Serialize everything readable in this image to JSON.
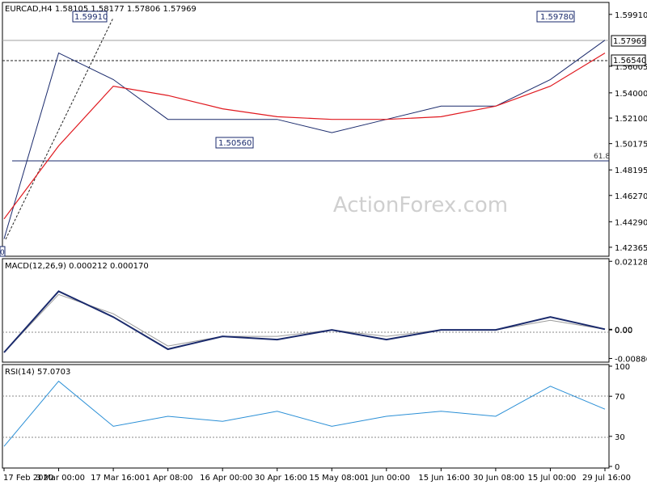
{
  "watermark": "ActionForex.com",
  "colors": {
    "price": "#1a2a6c",
    "ma": "#e0191f",
    "macd": "#1a2a6c",
    "macd_signal": "#9a9a9a",
    "rsi": "#2a8fd6",
    "frame": "#000000",
    "fib": "#1a2a6c",
    "grid_dash": "#888888"
  },
  "chart_data": [
    {
      "type": "line",
      "title": "EURCAD,H4  1.58105 1.58177 1.57806 1.57969",
      "series_name": "EURCAD H4",
      "ylim": [
        1.4175,
        1.6069
      ],
      "y_ticks": [
        "1.59910",
        "1.57969",
        "1.56540",
        "1.56005",
        "1.54000",
        "1.52100",
        "1.50175",
        "1.48195",
        "1.46270",
        "1.44290",
        "1.42365"
      ],
      "y_tick_values": [
        1.5991,
        1.57969,
        1.5654,
        1.56005,
        1.54,
        1.521,
        1.50175,
        1.48195,
        1.4627,
        1.4429,
        1.42365
      ],
      "x_ticks": [
        "17 Feb 2020",
        "3 Mar 00:00",
        "17 Mar 16:00",
        "1 Apr 08:00",
        "16 Apr 00:00",
        "30 Apr 16:00",
        "15 May 08:00",
        "1 Jun 00:00",
        "15 Jun 16:00",
        "30 Jun 08:00",
        "15 Jul 00:00",
        "29 Jul 16:00"
      ],
      "x": [
        "17 Feb 2020",
        "3 Mar 00:00",
        "17 Mar 16:00",
        "1 Apr 08:00",
        "16 Apr 00:00",
        "30 Apr 16:00",
        "15 May 08:00",
        "1 Jun 00:00",
        "15 Jun 16:00",
        "30 Jun 08:00",
        "15 Jul 00:00",
        "29 Jul 16:00"
      ],
      "price": [
        1.43,
        1.57,
        1.55,
        1.52,
        1.52,
        1.52,
        1.51,
        1.52,
        1.53,
        1.53,
        1.55,
        1.5797
      ],
      "ma": [
        1.445,
        1.5,
        1.545,
        1.538,
        1.528,
        1.522,
        1.52,
        1.52,
        1.522,
        1.53,
        1.545,
        1.57
      ],
      "annotations": [
        "1.59910",
        "1.59780",
        "1.50560",
        "0"
      ],
      "current_price_label": "1.57969",
      "hline_label": "1.56540",
      "fib_label": "61.8"
    },
    {
      "type": "line",
      "title": "MACD(12,26,9) 0.000212 0.000170",
      "ylim": [
        -0.0095,
        0.0216
      ],
      "y_ticks": [
        "0.021286",
        "0.00",
        "0.00",
        "-0.008863"
      ],
      "y_tick_values": [
        0.021286,
        0.0002,
        0.0,
        -0.008863
      ],
      "macd": [
        -0.007,
        0.012,
        0.004,
        -0.006,
        -0.002,
        -0.003,
        0.0,
        -0.003,
        0.0,
        0.0,
        0.004,
        0.0002
      ],
      "signal": [
        -0.007,
        0.011,
        0.005,
        -0.005,
        -0.002,
        -0.002,
        0.0,
        -0.002,
        0.0,
        0.0,
        0.003,
        0.00017
      ]
    },
    {
      "type": "line",
      "title": "RSI(14) 57.0703",
      "ylim": [
        0,
        100
      ],
      "y_ticks": [
        "100",
        "70",
        "30",
        "0"
      ],
      "y_tick_values": [
        100,
        70,
        30,
        0
      ],
      "levels": [
        70,
        30
      ],
      "rsi": [
        20,
        85,
        40,
        50,
        45,
        55,
        40,
        50,
        55,
        50,
        80,
        57.07
      ]
    }
  ]
}
